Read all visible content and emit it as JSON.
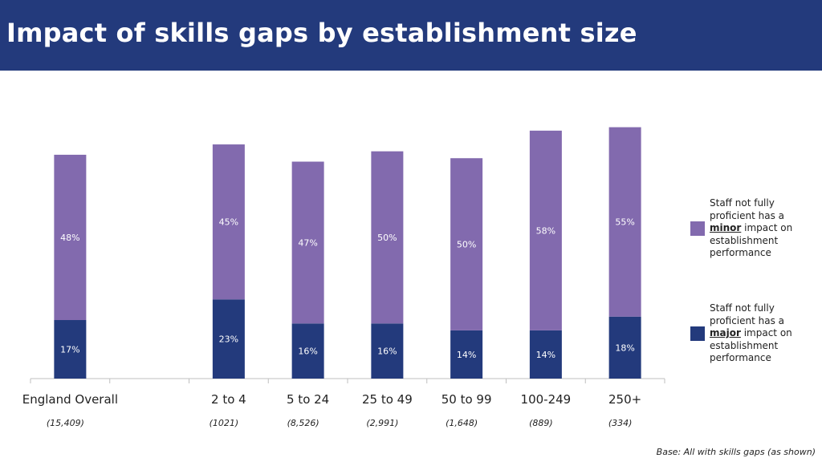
{
  "header": {
    "title": "Impact of skills gaps by establishment size"
  },
  "colors": {
    "header_bg": "#233a7c",
    "minor": "#826aae",
    "major": "#233a7c"
  },
  "chart_data": {
    "type": "bar",
    "stacked": true,
    "categories": [
      "England Overall",
      "",
      "2 to 4",
      "5 to 24",
      "25 to 49",
      "50 to 99",
      "100-249",
      "250+"
    ],
    "bases": [
      "(15,409)",
      "",
      "(1021)",
      "(8,526)",
      "(2,991)",
      "(1,648)",
      "(889)",
      "(334)"
    ],
    "series": [
      {
        "name": "major",
        "values": [
          17,
          null,
          23,
          16,
          16,
          14,
          14,
          18
        ],
        "labels": [
          "17%",
          "",
          "23%",
          "16%",
          "16%",
          "14%",
          "14%",
          "18%"
        ]
      },
      {
        "name": "minor",
        "values": [
          48,
          null,
          45,
          47,
          50,
          50,
          58,
          55
        ],
        "labels": [
          "48%",
          "",
          "45%",
          "47%",
          "50%",
          "50%",
          "58%",
          "55%"
        ]
      }
    ],
    "ylim": [
      0,
      75
    ],
    "grid": false,
    "legend_position": "right"
  },
  "legend": {
    "minor": {
      "pre": "Staff not fully proficient has a ",
      "bold": "minor",
      "post": " impact on establishment performance"
    },
    "major": {
      "pre": "Staff not fully proficient has a ",
      "bold": "major",
      "post": " impact on establishment performance"
    }
  },
  "footer": {
    "base_note": "Base: All with skills gaps (as shown)"
  }
}
